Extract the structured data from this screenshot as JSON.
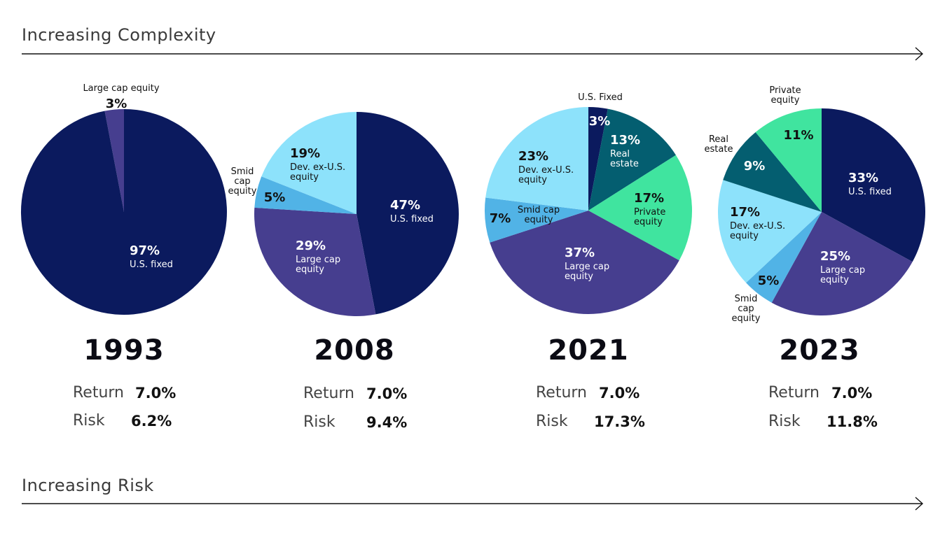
{
  "header": {
    "top_axis_label": "Increasing Complexity",
    "bottom_axis_label": "Increasing Risk"
  },
  "colors": {
    "us_fixed": "#0b1a5e",
    "large_cap": "#463e8f",
    "smid_cap": "#51b3e6",
    "dev_ex_us": "#8de2fb",
    "real_estate": "#045e70",
    "private_equity": "#40e49f"
  },
  "chart_data": [
    {
      "type": "pie",
      "title": "1993",
      "slices": [
        {
          "key": "us_fixed",
          "value": 97,
          "label": "97%",
          "lines": [
            "U.S. fixed"
          ]
        },
        {
          "key": "large_cap",
          "value": 3,
          "label": "3%",
          "lines": [
            "Large cap equity"
          ]
        }
      ],
      "stats": {
        "return_label": "Return",
        "return": "7.0%",
        "risk_label": "Risk",
        "risk": "6.2%"
      }
    },
    {
      "type": "pie",
      "title": "2008",
      "slices": [
        {
          "key": "us_fixed",
          "value": 47,
          "label": "47%",
          "lines": [
            "U.S. fixed"
          ]
        },
        {
          "key": "large_cap",
          "value": 29,
          "label": "29%",
          "lines": [
            "Large cap",
            "equity"
          ]
        },
        {
          "key": "smid_cap",
          "value": 5,
          "label": "5%",
          "lines": [
            "Smid",
            "cap",
            "equity"
          ]
        },
        {
          "key": "dev_ex_us",
          "value": 19,
          "label": "19%",
          "lines": [
            "Dev. ex-U.S.",
            "equity"
          ]
        }
      ],
      "stats": {
        "return_label": "Return",
        "return": "7.0%",
        "risk_label": "Risk",
        "risk": "9.4%"
      }
    },
    {
      "type": "pie",
      "title": "2021",
      "slices": [
        {
          "key": "us_fixed",
          "value": 3,
          "label": "3%",
          "lines": [
            "U.S. Fixed"
          ]
        },
        {
          "key": "real_estate",
          "value": 13,
          "label": "13%",
          "lines": [
            "Real",
            "estate"
          ]
        },
        {
          "key": "private_equity",
          "value": 17,
          "label": "17%",
          "lines": [
            "Private",
            "equity"
          ]
        },
        {
          "key": "large_cap",
          "value": 37,
          "label": "37%",
          "lines": [
            "Large cap",
            "equity"
          ]
        },
        {
          "key": "smid_cap",
          "value": 7,
          "label": "7%",
          "lines": [
            "Smid cap",
            "equity"
          ]
        },
        {
          "key": "dev_ex_us",
          "value": 23,
          "label": "23%",
          "lines": [
            "Dev. ex-U.S.",
            "equity"
          ]
        }
      ],
      "stats": {
        "return_label": "Return",
        "return": "7.0%",
        "risk_label": "Risk",
        "risk": "17.3%"
      }
    },
    {
      "type": "pie",
      "title": "2023",
      "slices": [
        {
          "key": "us_fixed",
          "value": 33,
          "label": "33%",
          "lines": [
            "U.S. fixed"
          ]
        },
        {
          "key": "large_cap",
          "value": 25,
          "label": "25%",
          "lines": [
            "Large cap",
            "equity"
          ]
        },
        {
          "key": "smid_cap",
          "value": 5,
          "label": "5%",
          "lines": [
            "Smid",
            "cap",
            "equity"
          ]
        },
        {
          "key": "dev_ex_us",
          "value": 17,
          "label": "17%",
          "lines": [
            "Dev. ex-U.S.",
            "equity"
          ]
        },
        {
          "key": "real_estate",
          "value": 9,
          "label": "9%",
          "lines": [
            "Real",
            "estate"
          ]
        },
        {
          "key": "private_equity",
          "value": 11,
          "label": "11%",
          "lines": [
            "Private",
            "equity"
          ]
        }
      ],
      "stats": {
        "return_label": "Return",
        "return": "7.0%",
        "risk_label": "Risk",
        "risk": "11.8%"
      }
    }
  ]
}
